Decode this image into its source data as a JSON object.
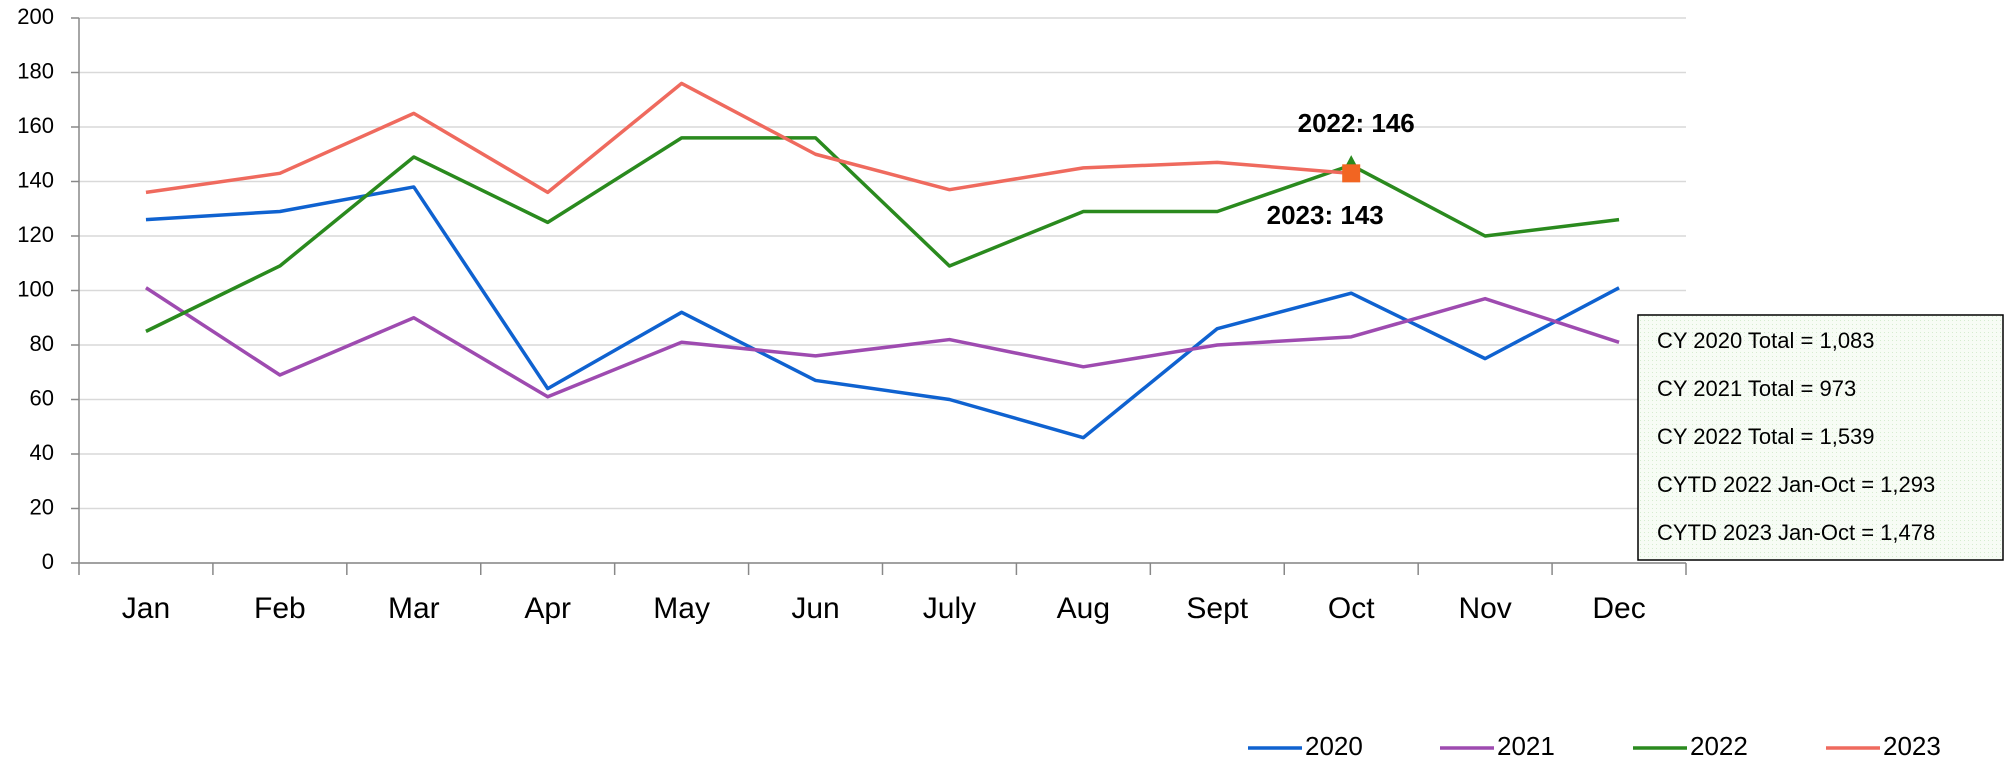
{
  "chart_data": {
    "type": "line",
    "categories": [
      "Jan",
      "Feb",
      "Mar",
      "Apr",
      "May",
      "Jun",
      "July",
      "Aug",
      "Sept",
      "Oct",
      "Nov",
      "Dec"
    ],
    "series": [
      {
        "name": "2020",
        "color": "#0f62d0",
        "values": [
          126,
          129,
          138,
          64,
          92,
          67,
          60,
          46,
          86,
          99,
          75,
          101
        ]
      },
      {
        "name": "2021",
        "color": "#9e4bb0",
        "values": [
          101,
          69,
          90,
          61,
          81,
          76,
          82,
          72,
          80,
          83,
          97,
          81
        ]
      },
      {
        "name": "2022",
        "color": "#2a8a1e",
        "values": [
          85,
          109,
          149,
          125,
          156,
          156,
          109,
          129,
          129,
          146,
          120,
          126
        ]
      },
      {
        "name": "2023",
        "color": "#ef6a5e",
        "values": [
          136,
          143,
          165,
          136,
          176,
          150,
          137,
          145,
          147,
          143,
          null,
          null
        ]
      }
    ],
    "ylim": [
      0,
      200
    ],
    "yticks": [
      0,
      20,
      40,
      60,
      80,
      100,
      120,
      140,
      160,
      180,
      200
    ],
    "grid": true,
    "legend": "bottom-right",
    "annotations": [
      {
        "text": "2022: 146",
        "series": "2022",
        "category": "Oct",
        "marker": "triangle",
        "marker_color": "#2a8a1e",
        "position": "above"
      },
      {
        "text": "2023: 143",
        "series": "2023",
        "category": "Oct",
        "marker": "square",
        "marker_color": "#f26522",
        "position": "below"
      }
    ],
    "text_box": [
      "CY 2020 Total =  1,083",
      "CY 2021 Total =  973",
      "CY 2022 Total =  1,539",
      "CYTD 2022 Jan-Oct = 1,293",
      "CYTD 2023 Jan-Oct = 1,478"
    ]
  }
}
